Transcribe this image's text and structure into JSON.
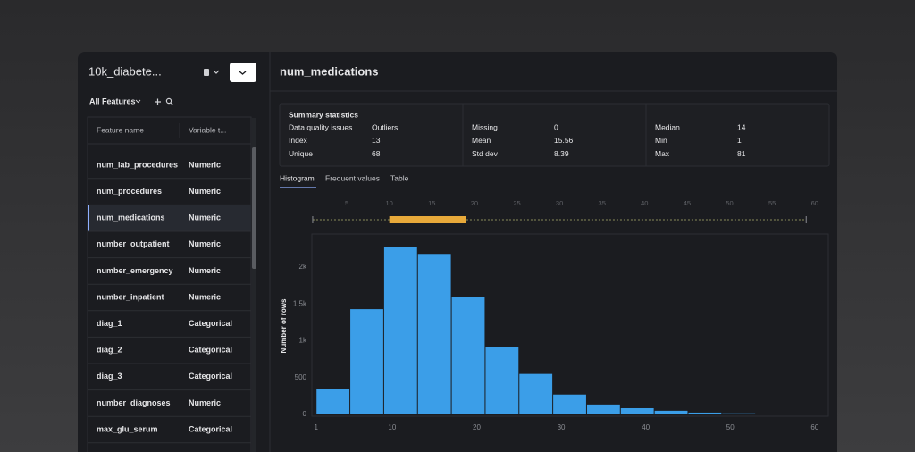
{
  "sidebar": {
    "dataset": "10k_diabete...",
    "filter": "All Features",
    "columns": [
      "Feature name",
      "Variable t..."
    ],
    "rows": [
      {
        "name": "num_lab_procedures",
        "type": "Numeric"
      },
      {
        "name": "num_procedures",
        "type": "Numeric"
      },
      {
        "name": "num_medications",
        "type": "Numeric"
      },
      {
        "name": "number_outpatient",
        "type": "Numeric"
      },
      {
        "name": "number_emergency",
        "type": "Numeric"
      },
      {
        "name": "number_inpatient",
        "type": "Numeric"
      },
      {
        "name": "diag_1",
        "type": "Categorical"
      },
      {
        "name": "diag_2",
        "type": "Categorical"
      },
      {
        "name": "diag_3",
        "type": "Categorical"
      },
      {
        "name": "number_diagnoses",
        "type": "Numeric"
      },
      {
        "name": "max_glu_serum",
        "type": "Categorical"
      }
    ]
  },
  "main": {
    "title": "num_medications",
    "summary": {
      "heading": "Summary statistics",
      "columns": [
        [
          [
            "Data quality issues",
            "Outliers"
          ],
          [
            "Index",
            13
          ],
          [
            "Unique",
            68
          ]
        ],
        [
          [
            "Missing",
            0
          ],
          [
            "Mean",
            15.56
          ],
          [
            "Std dev",
            8.39
          ]
        ],
        [
          [
            "Median",
            14
          ],
          [
            "Min",
            1
          ],
          [
            "Max",
            81
          ]
        ]
      ]
    },
    "tabs": [
      "Histogram",
      "Frequent values",
      "Table"
    ]
  },
  "chart_data": {
    "type": "histogram",
    "y_label": "Number of rows",
    "bins": [
      1,
      5,
      9,
      13,
      17,
      21,
      25,
      29,
      33,
      37,
      41,
      45,
      49,
      53,
      57,
      61
    ],
    "values": [
      350,
      1430,
      2280,
      2180,
      1600,
      915,
      550,
      270,
      135,
      85,
      50,
      25,
      15,
      10,
      10
    ],
    "color": "#3b9ee8",
    "xlim": [
      0.5,
      61.6
    ],
    "xticks": [
      1,
      10,
      20,
      30,
      40,
      50,
      60
    ],
    "ylim": [
      0,
      2450
    ],
    "yticks": [
      0,
      500,
      {
        "value": 1000,
        "label": "1k"
      },
      {
        "value": 1500,
        "label": "1.5k"
      },
      {
        "value": 2000,
        "label": "2k"
      }
    ],
    "grid": false,
    "boxplot": {
      "xlim": [
        0.9,
        61.6
      ],
      "xticks": [
        5,
        10,
        15,
        20,
        25,
        30,
        35,
        40,
        45,
        50,
        55,
        60
      ],
      "whisker_low": 1,
      "q1": 10,
      "q3": 19,
      "whisker_high": 59,
      "color": "#e8a93a"
    }
  }
}
